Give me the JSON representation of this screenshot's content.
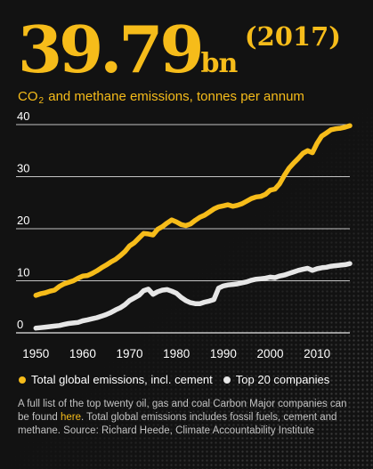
{
  "headline": {
    "value": "39.79",
    "unit": "bn",
    "year": "(2017)"
  },
  "subtitle": {
    "pre": "CO",
    "sub": "2",
    "post": " and methane emissions, tonnes per annum"
  },
  "legend": [
    {
      "label": "Total global emissions, incl. cement",
      "color": "#f6bc1a"
    },
    {
      "label": "Top 20 companies",
      "color": "#e6e6e6"
    }
  ],
  "footnote": {
    "before": "A full list of the top twenty oil, gas and coal Carbon Major companies can be found ",
    "link": "here",
    "after": ". Total global emissions includes fossil fuels, cement and methane. Source: Richard Heede, Climate Accountability Institute"
  },
  "colors": {
    "background": "#121212",
    "accent": "#f6bc1a",
    "secondary": "#e6e6e6",
    "grid": "#ffffff"
  },
  "chart_data": {
    "type": "line",
    "title": "",
    "xlabel": "",
    "ylabel": "",
    "xlim": [
      1949,
      2017
    ],
    "ylim": [
      0,
      40
    ],
    "yticks": [
      "0",
      "10",
      "20",
      "30",
      "40"
    ],
    "xticks": [
      "1950",
      "1960",
      "1970",
      "1980",
      "1990",
      "2000",
      "2010"
    ],
    "grid": true,
    "legend_position": "bottom",
    "x": [
      1950,
      1951,
      1952,
      1953,
      1954,
      1955,
      1956,
      1957,
      1958,
      1959,
      1960,
      1961,
      1962,
      1963,
      1964,
      1965,
      1966,
      1967,
      1968,
      1969,
      1970,
      1971,
      1972,
      1973,
      1974,
      1975,
      1976,
      1977,
      1978,
      1979,
      1980,
      1981,
      1982,
      1983,
      1984,
      1985,
      1986,
      1987,
      1988,
      1989,
      1990,
      1991,
      1992,
      1993,
      1994,
      1995,
      1996,
      1997,
      1998,
      1999,
      2000,
      2001,
      2002,
      2003,
      2004,
      2005,
      2006,
      2007,
      2008,
      2009,
      2010,
      2011,
      2012,
      2013,
      2014,
      2015,
      2016,
      2017
    ],
    "series": [
      {
        "name": "Total global emissions, incl. cement",
        "color": "#f6bc1a",
        "values": [
          7.2,
          7.5,
          7.7,
          8.0,
          8.2,
          8.9,
          9.4,
          9.7,
          10.0,
          10.5,
          10.9,
          11.0,
          11.4,
          11.9,
          12.5,
          13.0,
          13.6,
          14.1,
          14.8,
          15.6,
          16.7,
          17.3,
          18.2,
          19.1,
          19.0,
          18.8,
          19.9,
          20.4,
          21.1,
          21.7,
          21.3,
          20.8,
          20.6,
          20.9,
          21.6,
          22.2,
          22.6,
          23.2,
          23.8,
          24.2,
          24.4,
          24.6,
          24.3,
          24.5,
          24.8,
          25.3,
          25.8,
          26.1,
          26.2,
          26.6,
          27.4,
          27.6,
          28.6,
          30.2,
          31.6,
          32.6,
          33.5,
          34.5,
          35.0,
          34.6,
          36.4,
          37.8,
          38.4,
          39.0,
          39.2,
          39.3,
          39.5,
          39.79
        ]
      },
      {
        "name": "Top 20 companies",
        "color": "#e6e6e6",
        "values": [
          0.9,
          1.0,
          1.1,
          1.2,
          1.3,
          1.4,
          1.6,
          1.8,
          1.9,
          2.0,
          2.3,
          2.5,
          2.7,
          2.9,
          3.2,
          3.5,
          3.9,
          4.4,
          4.8,
          5.4,
          6.2,
          6.7,
          7.2,
          8.1,
          8.4,
          7.4,
          7.9,
          8.2,
          8.3,
          8.0,
          7.6,
          6.8,
          6.2,
          5.8,
          5.6,
          5.6,
          5.9,
          6.1,
          6.4,
          8.6,
          9.0,
          9.2,
          9.3,
          9.4,
          9.6,
          9.8,
          10.1,
          10.3,
          10.4,
          10.5,
          10.7,
          10.6,
          10.9,
          11.1,
          11.4,
          11.7,
          12.0,
          12.2,
          12.4,
          12.0,
          12.3,
          12.5,
          12.6,
          12.8,
          12.9,
          13.0,
          13.1,
          13.3
        ]
      }
    ]
  }
}
